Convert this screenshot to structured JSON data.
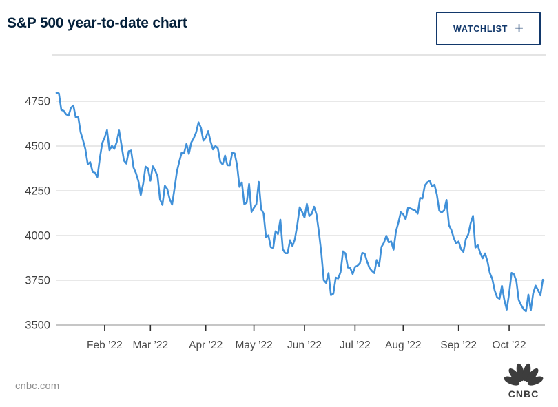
{
  "header": {
    "title": "S&P 500 year-to-date chart",
    "watchlist_label": "WATCHLIST",
    "watchlist_plus": "+"
  },
  "footer": {
    "source": "cnbc.com",
    "logo_text": "CNBC"
  },
  "colors": {
    "line": "#4191d9",
    "grid": "#dadada",
    "axis_line": "#b3b3b3",
    "tick": "#2f2f2f",
    "title": "#04203a",
    "navy": "#12386b",
    "y_label": "#3e3e3e",
    "x_label": "#4a4a4a",
    "footer_text": "#8f8f8f",
    "logo": "#3d3d3d",
    "divider": "#e4e4e4"
  },
  "chart_data": {
    "type": "line",
    "title": "S&P 500 year-to-date chart",
    "xlabel": "",
    "ylabel": "",
    "legend": "none",
    "grid": "horizontal",
    "ylim": [
      3480,
      4830
    ],
    "y_ticks": [
      3500,
      3750,
      4000,
      4250,
      4500,
      4750
    ],
    "y_tick_labels": [
      "3500",
      "3750",
      "4000",
      "4250",
      "4500",
      "4750"
    ],
    "x_tick_labels": [
      "Feb ’22",
      "Mar ’22",
      "Apr ’22",
      "May ’22",
      "Jun ’22",
      "Jul ’22",
      "Aug ’22",
      "Sep ’22",
      "Oct ’22"
    ],
    "x_tick_indices": [
      20,
      39,
      62,
      82,
      103,
      124,
      144,
      167,
      188
    ],
    "series": [
      {
        "name": "S&P 500",
        "values": [
          4797,
          4794,
          4701,
          4696,
          4677,
          4670,
          4713,
          4726,
          4659,
          4663,
          4577,
          4533,
          4483,
          4398,
          4410,
          4356,
          4350,
          4327,
          4432,
          4516,
          4547,
          4589,
          4477,
          4501,
          4484,
          4522,
          4587,
          4504,
          4419,
          4402,
          4471,
          4475,
          4380,
          4349,
          4305,
          4226,
          4289,
          4385,
          4374,
          4306,
          4387,
          4363,
          4329,
          4201,
          4171,
          4278,
          4260,
          4204,
          4173,
          4262,
          4358,
          4412,
          4463,
          4461,
          4512,
          4456,
          4520,
          4543,
          4576,
          4632,
          4602,
          4530,
          4546,
          4583,
          4525,
          4481,
          4500,
          4488,
          4413,
          4397,
          4447,
          4393,
          4392,
          4462,
          4459,
          4394,
          4272,
          4296,
          4175,
          4184,
          4288,
          4132,
          4155,
          4175,
          4300,
          4147,
          4123,
          3991,
          4001,
          3935,
          3930,
          4024,
          4008,
          4089,
          3924,
          3901,
          3901,
          3974,
          3941,
          3979,
          4058,
          4158,
          4132,
          4101,
          4177,
          4109,
          4121,
          4161,
          4116,
          4018,
          3901,
          3750,
          3735,
          3790,
          3667,
          3675,
          3765,
          3760,
          3796,
          3912,
          3900,
          3822,
          3819,
          3785,
          3825,
          3831,
          3845,
          3903,
          3899,
          3854,
          3819,
          3802,
          3790,
          3863,
          3831,
          3937,
          3960,
          3999,
          3962,
          3967,
          3921,
          4024,
          4072,
          4130,
          4119,
          4091,
          4155,
          4152,
          4145,
          4140,
          4122,
          4210,
          4207,
          4280,
          4297,
          4305,
          4274,
          4284,
          4228,
          4138,
          4129,
          4141,
          4199,
          4058,
          4031,
          3986,
          3955,
          3967,
          3924,
          3908,
          3980,
          4006,
          4067,
          4110,
          3933,
          3946,
          3901,
          3873,
          3900,
          3856,
          3790,
          3758,
          3693,
          3655,
          3647,
          3719,
          3640,
          3586,
          3678,
          3791,
          3783,
          3745,
          3640,
          3612,
          3589,
          3577,
          3670,
          3583,
          3678,
          3720,
          3695,
          3666,
          3753
        ]
      }
    ]
  }
}
